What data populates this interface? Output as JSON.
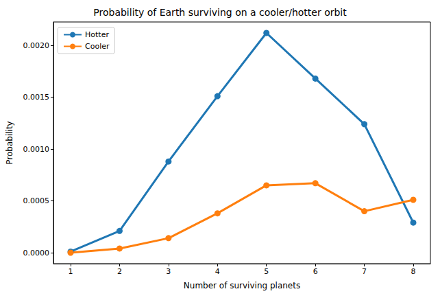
{
  "chart_data": {
    "type": "line",
    "title": "Probability of Earth surviving on a cooler/hotter orbit",
    "x_label": "Number of surviving planets",
    "y_label": "Probability",
    "x": [
      1,
      2,
      3,
      4,
      5,
      6,
      7,
      8
    ],
    "series": [
      {
        "name": "Hotter",
        "color": "#1f77b4",
        "marker": "circle",
        "line_style": "solid",
        "values": [
          1e-05,
          0.00021,
          0.00088,
          0.00151,
          0.00212,
          0.00168,
          0.00124,
          0.00029
        ]
      },
      {
        "name": "Cooler",
        "color": "#ff7f0e",
        "marker": "circle",
        "line_style": "solid",
        "values": [
          0.0,
          4e-05,
          0.00014,
          0.00038,
          0.00065,
          0.00067,
          0.0004,
          0.00051
        ]
      }
    ],
    "xlim": [
      0.65,
      8.35
    ],
    "xticks": [
      1,
      2,
      3,
      4,
      5,
      6,
      7,
      8
    ],
    "ylim": [
      -0.000106,
      0.002226
    ],
    "yticks": [
      {
        "value": 0,
        "label": "0.0000"
      },
      {
        "value": 0.0005,
        "label": "0.0005"
      },
      {
        "value": 0.001,
        "label": "0.0010"
      },
      {
        "value": 0.0015,
        "label": "0.0015"
      },
      {
        "value": 0.002,
        "label": "0.0020"
      }
    ],
    "grid": false,
    "legend": "upper left"
  }
}
